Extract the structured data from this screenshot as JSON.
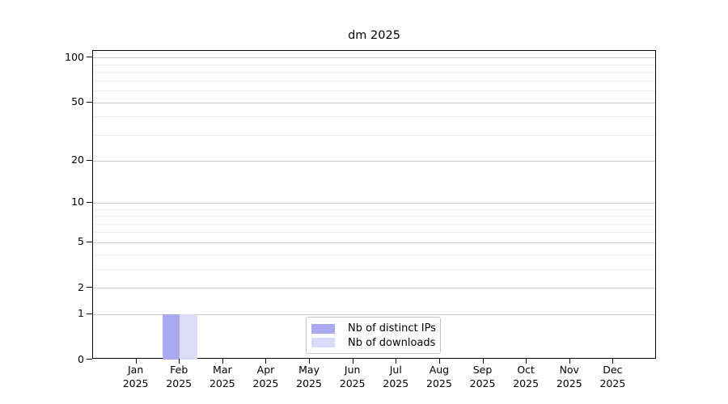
{
  "chart_data": {
    "type": "bar",
    "title": "dm 2025",
    "y_scale": "log1p",
    "ylim": [
      0,
      111
    ],
    "y_major_ticks": [
      0,
      1,
      2,
      5,
      10,
      20,
      50,
      100
    ],
    "y_minor_ticks": [
      3,
      4,
      6,
      7,
      8,
      9,
      30,
      40,
      60,
      70,
      80,
      90
    ],
    "categories": [
      "Jan",
      "Feb",
      "Mar",
      "Apr",
      "May",
      "Jun",
      "Jul",
      "Aug",
      "Sep",
      "Oct",
      "Nov",
      "Dec"
    ],
    "category_year": "2025",
    "series": [
      {
        "name": "Nb of distinct IPs",
        "color": "#a9a9f0",
        "values": [
          0,
          1,
          0,
          0,
          0,
          0,
          0,
          0,
          0,
          0,
          0,
          0
        ]
      },
      {
        "name": "Nb of downloads",
        "color": "#dcdcf8",
        "values": [
          0,
          1,
          0,
          0,
          0,
          0,
          0,
          0,
          0,
          0,
          0,
          0
        ]
      }
    ],
    "grid": {
      "major_color": "#c9c9c9",
      "minor_color": "#ececec"
    },
    "axis_color": "#000000",
    "legend": {
      "position": "bottom-center"
    }
  }
}
